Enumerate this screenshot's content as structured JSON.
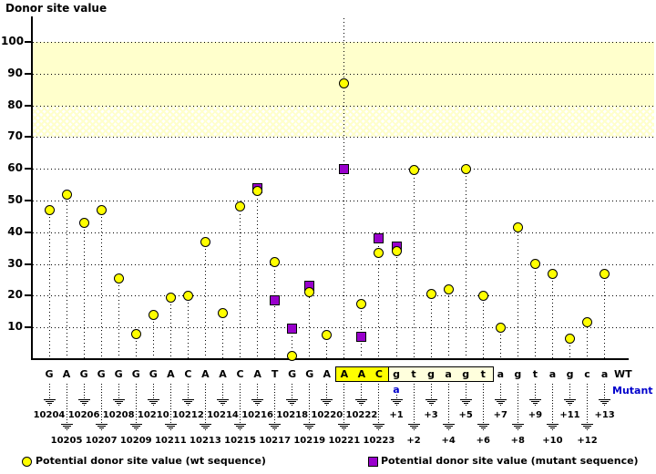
{
  "title": "Donor site value",
  "wt_label": "WT",
  "mutant_label": "Mutant",
  "legend": {
    "wt": "Potential donor site value (wt sequence)",
    "mutant": "Potential donor site value (mutant sequence)"
  },
  "colors": {
    "wt_marker": "#ffff00",
    "mutant_marker": "#9900cc",
    "band_solid": "#ffffcc",
    "site_box": "#ffff00",
    "intron_box": "#ffffdd",
    "mutant_text": "#0000cc"
  },
  "chart_data": {
    "type": "lollipop",
    "ylabel": "Donor site value",
    "ylim": [
      0,
      107
    ],
    "yticks": [
      100,
      90,
      80,
      70,
      60,
      50,
      40,
      30,
      20,
      10
    ],
    "grid": "dotted",
    "bands": [
      {
        "from": 80,
        "to": 100,
        "style": "solid"
      },
      {
        "from": 70,
        "to": 80,
        "style": "crosshatch"
      }
    ],
    "series_legend_position": "bottom",
    "positions": [
      {
        "pos": "10204",
        "base": "G",
        "wt": 47
      },
      {
        "pos": "10205",
        "base": "A",
        "wt": 52
      },
      {
        "pos": "10206",
        "base": "G",
        "wt": 43
      },
      {
        "pos": "10207",
        "base": "G",
        "wt": 47
      },
      {
        "pos": "10208",
        "base": "G",
        "wt": 25.5
      },
      {
        "pos": "10209",
        "base": "G",
        "wt": 8
      },
      {
        "pos": "10210",
        "base": "G",
        "wt": 14
      },
      {
        "pos": "10211",
        "base": "A",
        "wt": 19.5
      },
      {
        "pos": "10212",
        "base": "C",
        "wt": 20
      },
      {
        "pos": "10213",
        "base": "A",
        "wt": 37
      },
      {
        "pos": "10214",
        "base": "A",
        "wt": 14.5
      },
      {
        "pos": "10215",
        "base": "C",
        "wt": 48
      },
      {
        "pos": "10216",
        "base": "A",
        "wt": 53,
        "mutant": 54
      },
      {
        "pos": "10217",
        "base": "T",
        "wt": 30.5,
        "mutant": 18.5
      },
      {
        "pos": "10218",
        "base": "G",
        "wt": 1,
        "mutant": 9.5
      },
      {
        "pos": "10219",
        "base": "G",
        "wt": 21,
        "mutant": 23
      },
      {
        "pos": "10220",
        "base": "A",
        "wt": 7.5
      },
      {
        "pos": "10221",
        "base": "A",
        "wt": 87,
        "mutant": 60,
        "highlight": "site",
        "full_stem": true
      },
      {
        "pos": "10222",
        "base": "A",
        "wt": 17.5,
        "mutant": 7,
        "highlight": "site"
      },
      {
        "pos": "10223",
        "base": "C",
        "wt": 33.5,
        "mutant": 38,
        "highlight": "site"
      },
      {
        "pos": "+1",
        "base": "g",
        "wt": 34,
        "mutant": 35.5,
        "highlight": "intron",
        "mutant_base": "a"
      },
      {
        "pos": "+2",
        "base": "t",
        "wt": 59.5,
        "highlight": "intron"
      },
      {
        "pos": "+3",
        "base": "g",
        "wt": 20.5,
        "highlight": "intron"
      },
      {
        "pos": "+4",
        "base": "a",
        "wt": 22,
        "highlight": "intron"
      },
      {
        "pos": "+5",
        "base": "g",
        "wt": 60,
        "highlight": "intron"
      },
      {
        "pos": "+6",
        "base": "t",
        "wt": 20,
        "highlight": "intron"
      },
      {
        "pos": "+7",
        "base": "a",
        "wt": 10
      },
      {
        "pos": "+8",
        "base": "g",
        "wt": 41.5
      },
      {
        "pos": "+9",
        "base": "t",
        "wt": 30
      },
      {
        "pos": "+10",
        "base": "a",
        "wt": 27
      },
      {
        "pos": "+11",
        "base": "g",
        "wt": 6.5
      },
      {
        "pos": "+12",
        "base": "c",
        "wt": 11.5
      },
      {
        "pos": "+13",
        "base": "a",
        "wt": 27
      }
    ]
  }
}
